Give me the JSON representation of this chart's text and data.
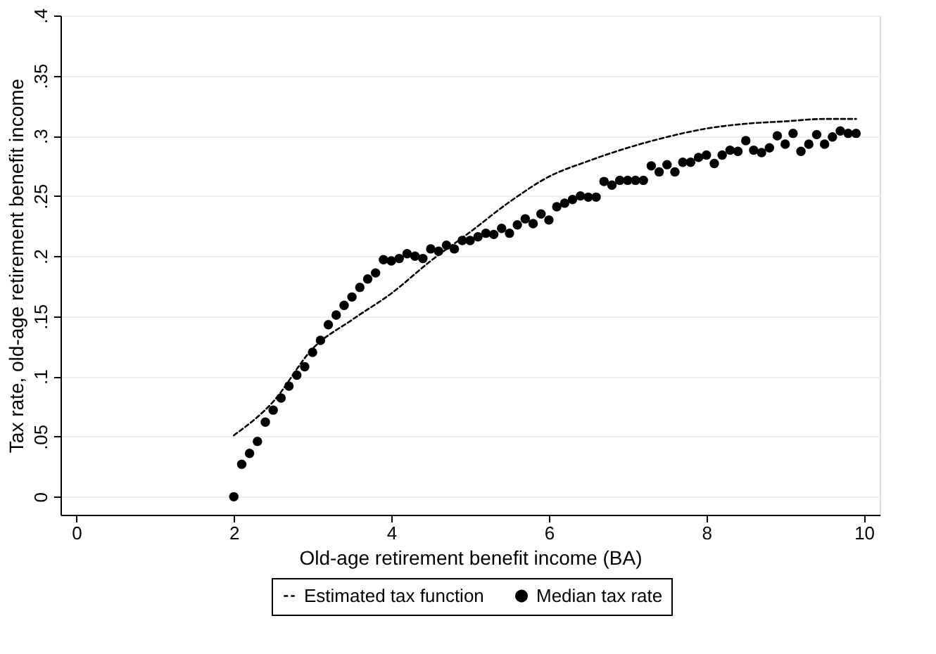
{
  "chart_data": {
    "type": "scatter",
    "xlabel": "Old-age retirement benefit income (BA)",
    "ylabel": "Tax rate, old-age retirement benefit income",
    "xlim": [
      -0.2,
      10.2
    ],
    "xticks": [
      0,
      2,
      4,
      6,
      8,
      10
    ],
    "ylim": [
      -0.015,
      0.4
    ],
    "yticks": [
      0,
      {
        "value": 0.05,
        "label": ".05"
      },
      {
        "value": 0.1,
        "label": ".1"
      },
      {
        "value": 0.15,
        "label": ".15"
      },
      {
        "value": 0.2,
        "label": ".2"
      },
      {
        "value": 0.25,
        "label": ".25"
      },
      {
        "value": 0.3,
        "label": ".3"
      },
      {
        "value": 0.35,
        "label": ".35"
      },
      {
        "value": 0.4,
        "label": ".4"
      }
    ],
    "grid": "y",
    "legend": "bottom",
    "series": [
      {
        "name": "Estimated tax function",
        "type": "line",
        "color": "#000000",
        "marker": "none",
        "line_style": "dashed",
        "x": [
          2.0,
          2.5,
          3.0,
          3.5,
          4.0,
          4.5,
          5.0,
          5.5,
          6.0,
          6.5,
          7.0,
          7.5,
          8.0,
          8.5,
          9.0,
          9.5,
          9.9
        ],
        "values": [
          0.051,
          0.079,
          0.123,
          0.147,
          0.169,
          0.196,
          0.22,
          0.245,
          0.266,
          0.279,
          0.29,
          0.299,
          0.306,
          0.31,
          0.312,
          0.314,
          0.314
        ]
      },
      {
        "name": "Median tax rate",
        "color": "#000000",
        "marker": "circle",
        "x": [
          2.0,
          2.1,
          2.2,
          2.3,
          2.4,
          2.5,
          2.6,
          2.7,
          2.8,
          2.9,
          3.0,
          3.1,
          3.2,
          3.3,
          3.4,
          3.5,
          3.6,
          3.7,
          3.8,
          3.9,
          4.0,
          4.1,
          4.2,
          4.3,
          4.4,
          4.5,
          4.6,
          4.7,
          4.8,
          4.9,
          5.0,
          5.1,
          5.2,
          5.3,
          5.4,
          5.5,
          5.6,
          5.7,
          5.8,
          5.9,
          6.0,
          6.1,
          6.2,
          6.3,
          6.4,
          6.5,
          6.6,
          6.7,
          6.8,
          6.9,
          7.0,
          7.1,
          7.2,
          7.3,
          7.4,
          7.5,
          7.6,
          7.7,
          7.8,
          7.9,
          8.0,
          8.1,
          8.2,
          8.3,
          8.4,
          8.5,
          8.6,
          8.7,
          8.8,
          8.9,
          9.0,
          9.1,
          9.2,
          9.3,
          9.4,
          9.5,
          9.6,
          9.7,
          9.8,
          9.9
        ],
        "values": [
          0.0,
          0.027,
          0.036,
          0.046,
          0.062,
          0.072,
          0.082,
          0.092,
          0.101,
          0.108,
          0.12,
          0.13,
          0.143,
          0.151,
          0.159,
          0.166,
          0.174,
          0.181,
          0.186,
          0.197,
          0.196,
          0.198,
          0.202,
          0.2,
          0.198,
          0.206,
          0.204,
          0.209,
          0.206,
          0.213,
          0.213,
          0.216,
          0.219,
          0.218,
          0.223,
          0.219,
          0.226,
          0.231,
          0.227,
          0.235,
          0.23,
          0.241,
          0.244,
          0.247,
          0.25,
          0.249,
          0.249,
          0.262,
          0.259,
          0.263,
          0.263,
          0.263,
          0.263,
          0.275,
          0.27,
          0.276,
          0.27,
          0.278,
          0.278,
          0.282,
          0.284,
          0.277,
          0.284,
          0.288,
          0.287,
          0.296,
          0.288,
          0.286,
          0.29,
          0.3,
          0.293,
          0.302,
          0.287,
          0.293,
          0.301,
          0.293,
          0.299,
          0.304,
          0.302,
          0.302
        ]
      }
    ]
  }
}
